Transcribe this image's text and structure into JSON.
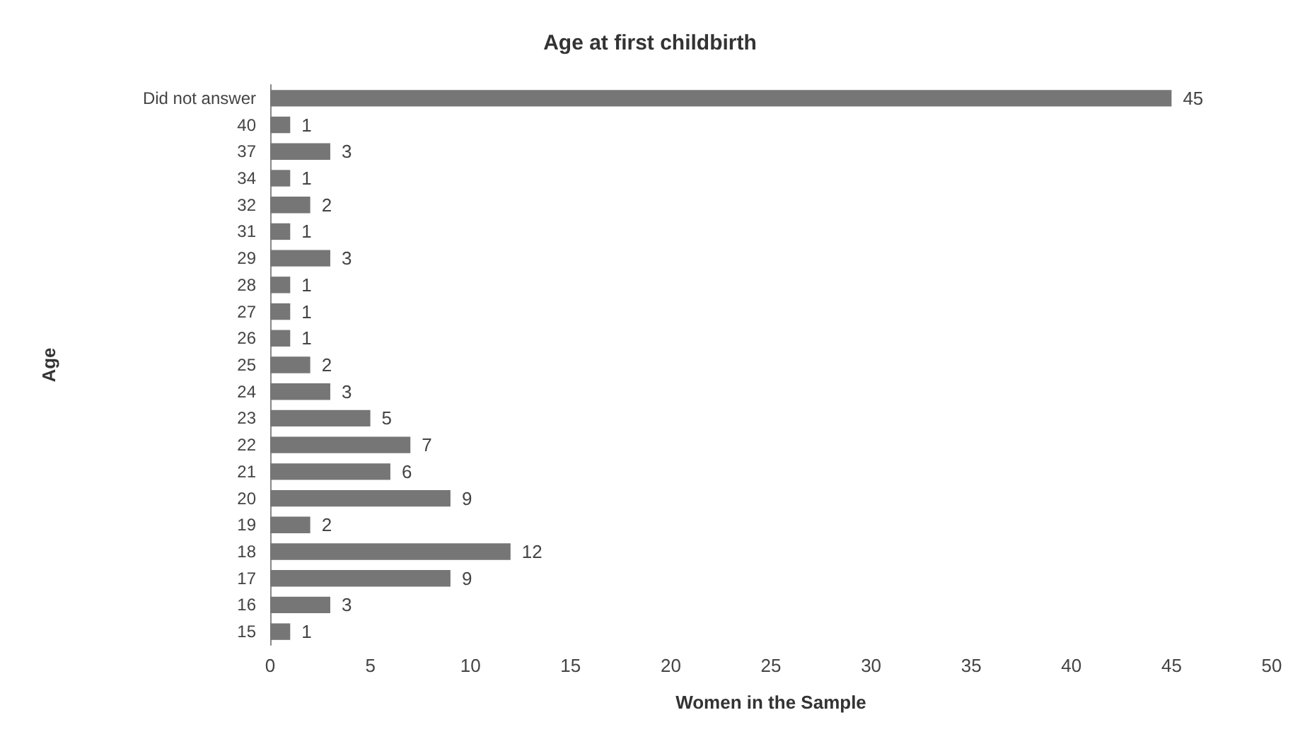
{
  "chart_data": {
    "type": "bar",
    "orientation": "horizontal",
    "title": "Age at first childbirth",
    "xlabel": "Women in the Sample",
    "ylabel": "Age",
    "categories": [
      "Did not answer",
      "40",
      "37",
      "34",
      "32",
      "31",
      "29",
      "28",
      "27",
      "26",
      "25",
      "24",
      "23",
      "22",
      "21",
      "20",
      "19",
      "18",
      "17",
      "16",
      "15"
    ],
    "values": [
      45,
      1,
      3,
      1,
      2,
      1,
      3,
      1,
      1,
      1,
      2,
      3,
      5,
      7,
      6,
      9,
      2,
      12,
      9,
      3,
      1
    ],
    "color": "#767676",
    "xlim": [
      0,
      50
    ],
    "xticks": [
      0,
      5,
      10,
      15,
      20,
      25,
      30,
      35,
      40,
      45,
      50
    ],
    "grid": false,
    "data_labels": true
  }
}
